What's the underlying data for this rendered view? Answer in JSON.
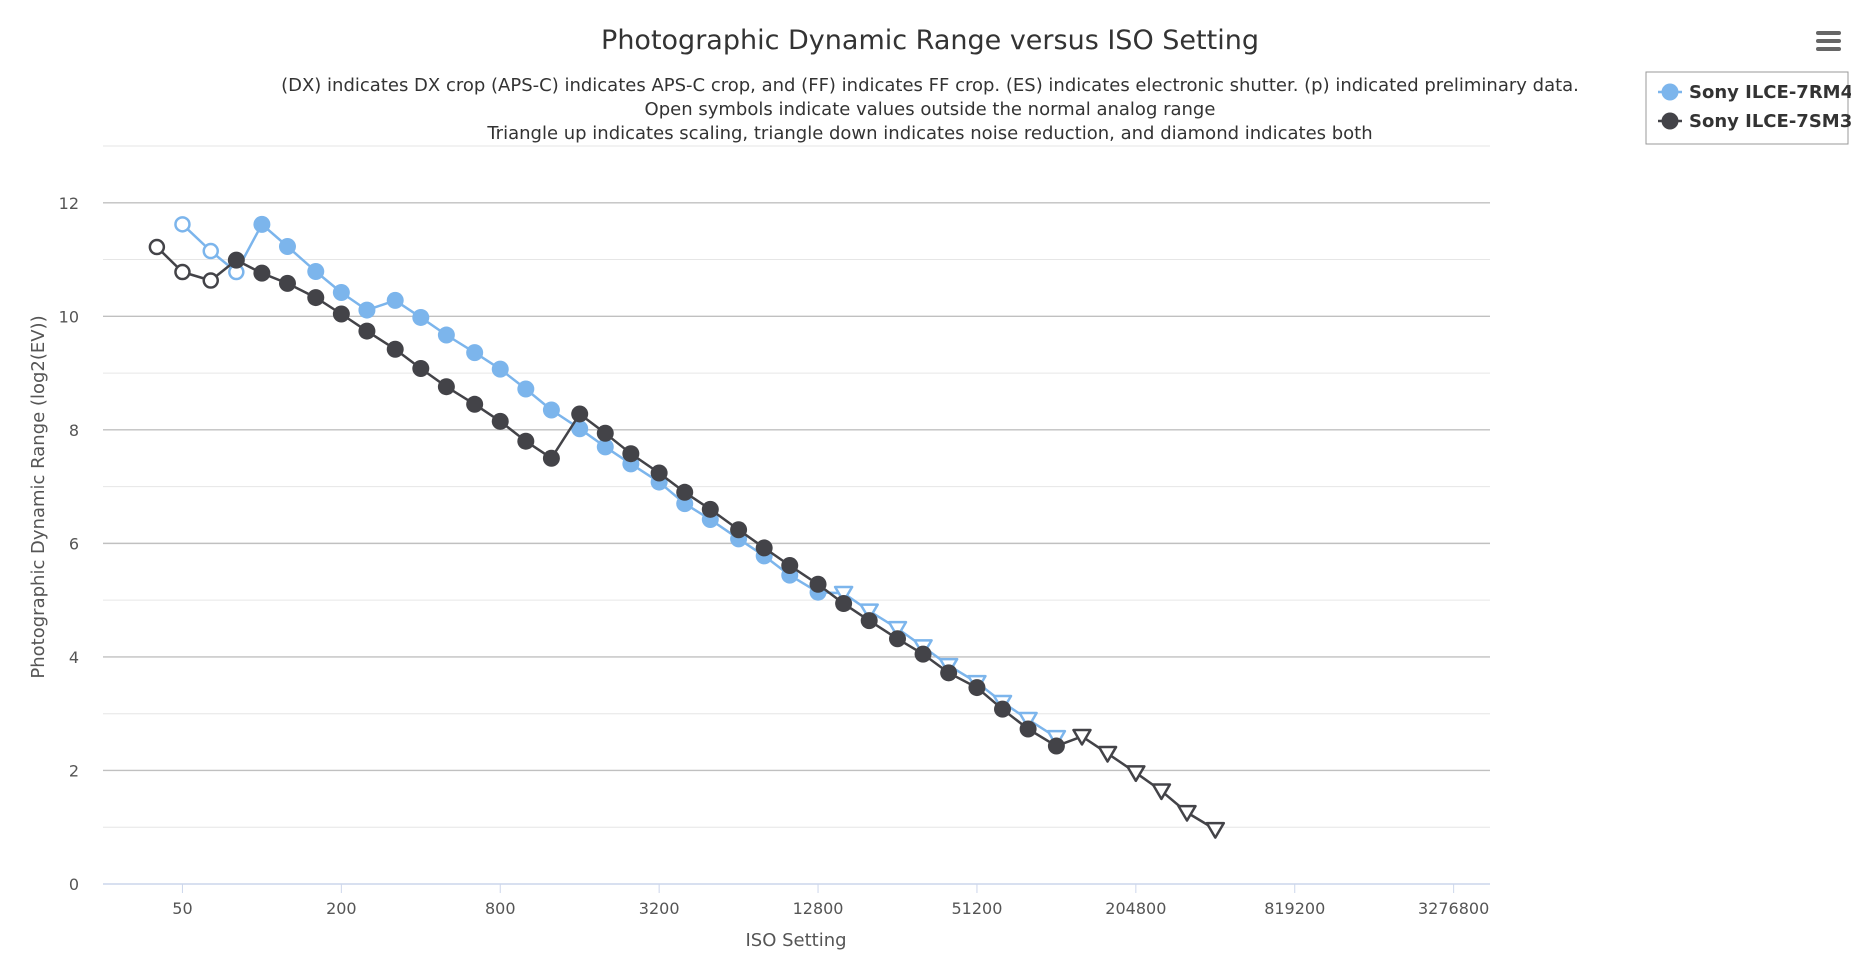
{
  "chart_data": {
    "type": "line",
    "title": "Photographic Dynamic Range versus ISO Setting",
    "subtitle_lines": [
      "(DX) indicates DX crop (APS-C) indicates APS-C crop, and (FF) indicates FF crop. (ES) indicates electronic shutter. (p) indicated preliminary data.",
      "Open symbols indicate values outside the normal analog range",
      "Triangle up indicates scaling, triangle down indicates noise reduction, and diamond indicates both"
    ],
    "xlabel": "ISO Setting",
    "ylabel": "Photographic Dynamic Range (log2(EV))",
    "x_scale": "log2",
    "xlim": [
      25,
      4500000
    ],
    "ylim": [
      0,
      13
    ],
    "x_ticks": [
      50,
      200,
      800,
      3200,
      12800,
      51200,
      204800,
      819200,
      3276800
    ],
    "x_tick_labels": [
      "50",
      "200",
      "800",
      "3200",
      "12800",
      "51200",
      "204800",
      "819200",
      "3276800"
    ],
    "y_ticks": [
      0,
      2,
      4,
      6,
      8,
      10,
      12
    ],
    "y_tick_labels": [
      "0",
      "2",
      "4",
      "6",
      "8",
      "10",
      "12"
    ],
    "legend_position": "top-right",
    "series": [
      {
        "name": "Sony ILCE-7RM4",
        "color": "#7cb5ec",
        "points": [
          {
            "x": 50,
            "y": 11.62,
            "marker": "open-circle"
          },
          {
            "x": 64,
            "y": 11.15,
            "marker": "open-circle"
          },
          {
            "x": 80,
            "y": 10.78,
            "marker": "open-circle"
          },
          {
            "x": 100,
            "y": 11.62,
            "marker": "circle"
          },
          {
            "x": 125,
            "y": 11.23,
            "marker": "circle"
          },
          {
            "x": 160,
            "y": 10.79,
            "marker": "circle"
          },
          {
            "x": 200,
            "y": 10.42,
            "marker": "circle"
          },
          {
            "x": 250,
            "y": 10.11,
            "marker": "circle"
          },
          {
            "x": 320,
            "y": 10.28,
            "marker": "circle"
          },
          {
            "x": 400,
            "y": 9.98,
            "marker": "circle"
          },
          {
            "x": 500,
            "y": 9.67,
            "marker": "circle"
          },
          {
            "x": 640,
            "y": 9.36,
            "marker": "circle"
          },
          {
            "x": 800,
            "y": 9.07,
            "marker": "circle"
          },
          {
            "x": 1000,
            "y": 8.72,
            "marker": "circle"
          },
          {
            "x": 1250,
            "y": 8.35,
            "marker": "circle"
          },
          {
            "x": 1600,
            "y": 8.02,
            "marker": "circle"
          },
          {
            "x": 2000,
            "y": 7.7,
            "marker": "circle"
          },
          {
            "x": 2500,
            "y": 7.4,
            "marker": "circle"
          },
          {
            "x": 3200,
            "y": 7.08,
            "marker": "circle"
          },
          {
            "x": 4000,
            "y": 6.7,
            "marker": "circle"
          },
          {
            "x": 5000,
            "y": 6.42,
            "marker": "circle"
          },
          {
            "x": 6400,
            "y": 6.08,
            "marker": "circle"
          },
          {
            "x": 8000,
            "y": 5.78,
            "marker": "circle"
          },
          {
            "x": 10000,
            "y": 5.44,
            "marker": "circle"
          },
          {
            "x": 12800,
            "y": 5.14,
            "marker": "circle"
          },
          {
            "x": 16000,
            "y": 5.12,
            "marker": "triangle-down"
          },
          {
            "x": 20000,
            "y": 4.81,
            "marker": "triangle-down"
          },
          {
            "x": 25600,
            "y": 4.5,
            "marker": "triangle-down"
          },
          {
            "x": 32000,
            "y": 4.18,
            "marker": "triangle-down"
          },
          {
            "x": 40000,
            "y": 3.85,
            "marker": "triangle-down"
          },
          {
            "x": 51200,
            "y": 3.55,
            "marker": "triangle-down"
          },
          {
            "x": 64000,
            "y": 3.2,
            "marker": "triangle-down"
          },
          {
            "x": 80000,
            "y": 2.9,
            "marker": "triangle-down"
          },
          {
            "x": 102400,
            "y": 2.58,
            "marker": "triangle-down"
          }
        ]
      },
      {
        "name": "Sony ILCE-7SM3",
        "color": "#434348",
        "points": [
          {
            "x": 40,
            "y": 11.22,
            "marker": "open-circle"
          },
          {
            "x": 50,
            "y": 10.78,
            "marker": "open-circle"
          },
          {
            "x": 64,
            "y": 10.63,
            "marker": "open-circle"
          },
          {
            "x": 80,
            "y": 10.99,
            "marker": "circle"
          },
          {
            "x": 100,
            "y": 10.76,
            "marker": "circle"
          },
          {
            "x": 125,
            "y": 10.58,
            "marker": "circle"
          },
          {
            "x": 160,
            "y": 10.33,
            "marker": "circle"
          },
          {
            "x": 200,
            "y": 10.04,
            "marker": "circle"
          },
          {
            "x": 250,
            "y": 9.74,
            "marker": "circle"
          },
          {
            "x": 320,
            "y": 9.42,
            "marker": "circle"
          },
          {
            "x": 400,
            "y": 9.08,
            "marker": "circle"
          },
          {
            "x": 500,
            "y": 8.76,
            "marker": "circle"
          },
          {
            "x": 640,
            "y": 8.45,
            "marker": "circle"
          },
          {
            "x": 800,
            "y": 8.15,
            "marker": "circle"
          },
          {
            "x": 1000,
            "y": 7.8,
            "marker": "circle"
          },
          {
            "x": 1250,
            "y": 7.5,
            "marker": "circle"
          },
          {
            "x": 1600,
            "y": 8.28,
            "marker": "circle"
          },
          {
            "x": 2000,
            "y": 7.94,
            "marker": "circle"
          },
          {
            "x": 2500,
            "y": 7.58,
            "marker": "circle"
          },
          {
            "x": 3200,
            "y": 7.24,
            "marker": "circle"
          },
          {
            "x": 4000,
            "y": 6.9,
            "marker": "circle"
          },
          {
            "x": 5000,
            "y": 6.6,
            "marker": "circle"
          },
          {
            "x": 6400,
            "y": 6.24,
            "marker": "circle"
          },
          {
            "x": 8000,
            "y": 5.92,
            "marker": "circle"
          },
          {
            "x": 10000,
            "y": 5.61,
            "marker": "circle"
          },
          {
            "x": 12800,
            "y": 5.28,
            "marker": "circle"
          },
          {
            "x": 16000,
            "y": 4.94,
            "marker": "circle"
          },
          {
            "x": 20000,
            "y": 4.64,
            "marker": "circle"
          },
          {
            "x": 25600,
            "y": 4.32,
            "marker": "circle"
          },
          {
            "x": 32000,
            "y": 4.05,
            "marker": "circle"
          },
          {
            "x": 40000,
            "y": 3.72,
            "marker": "circle"
          },
          {
            "x": 51200,
            "y": 3.46,
            "marker": "circle"
          },
          {
            "x": 64000,
            "y": 3.08,
            "marker": "circle"
          },
          {
            "x": 80000,
            "y": 2.73,
            "marker": "circle"
          },
          {
            "x": 102400,
            "y": 2.43,
            "marker": "circle"
          },
          {
            "x": 128000,
            "y": 2.6,
            "marker": "triangle-down"
          },
          {
            "x": 160000,
            "y": 2.3,
            "marker": "triangle-down"
          },
          {
            "x": 204800,
            "y": 1.96,
            "marker": "triangle-down"
          },
          {
            "x": 256000,
            "y": 1.64,
            "marker": "triangle-down"
          },
          {
            "x": 320000,
            "y": 1.26,
            "marker": "triangle-down"
          },
          {
            "x": 409600,
            "y": 0.96,
            "marker": "triangle-down"
          }
        ]
      }
    ]
  },
  "menu_icon": "hamburger-menu-icon"
}
